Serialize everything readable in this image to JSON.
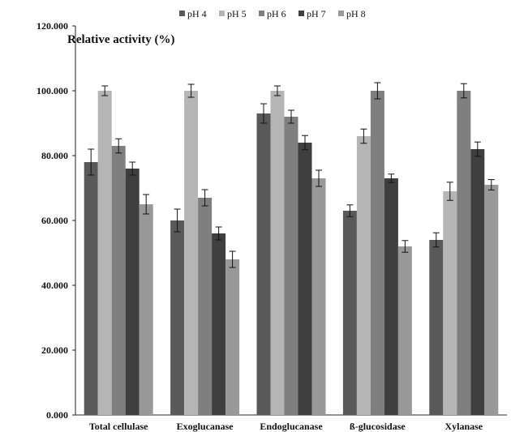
{
  "chart_data": {
    "type": "bar",
    "title": "Relative activity (%)",
    "xlabel": "",
    "ylabel": "",
    "ylim": [
      0,
      120
    ],
    "yticks": [
      "0.000",
      "20.000",
      "40.000",
      "60.000",
      "80.000",
      "100.000",
      "120.000"
    ],
    "categories": [
      "Total cellulase",
      "Exoglucanase",
      "Endoglucanase",
      "ß-glucosidase",
      "Xylanase"
    ],
    "legend_position": "top",
    "grid": false,
    "series": [
      {
        "name": "pH 4",
        "color": "#595959",
        "values": [
          78,
          60,
          93,
          63,
          54
        ],
        "errors": [
          4,
          3.5,
          3,
          1.8,
          2.2
        ]
      },
      {
        "name": "pH 5",
        "color": "#b5b5b5",
        "values": [
          100,
          100,
          100,
          86,
          69
        ],
        "errors": [
          1.5,
          2,
          1.5,
          2.2,
          2.8
        ]
      },
      {
        "name": "pH 6",
        "color": "#7f7f7f",
        "values": [
          83,
          67,
          92,
          100,
          100
        ],
        "errors": [
          2.2,
          2.5,
          2,
          2.5,
          2.2
        ]
      },
      {
        "name": "pH 7",
        "color": "#3f3f3f",
        "values": [
          76,
          56,
          84,
          73,
          82
        ],
        "errors": [
          2,
          2,
          2.2,
          1.3,
          2.2
        ]
      },
      {
        "name": "pH 8",
        "color": "#999999",
        "values": [
          65,
          48,
          73,
          52,
          71
        ],
        "errors": [
          3,
          2.5,
          2.5,
          1.8,
          1.6
        ]
      }
    ]
  }
}
